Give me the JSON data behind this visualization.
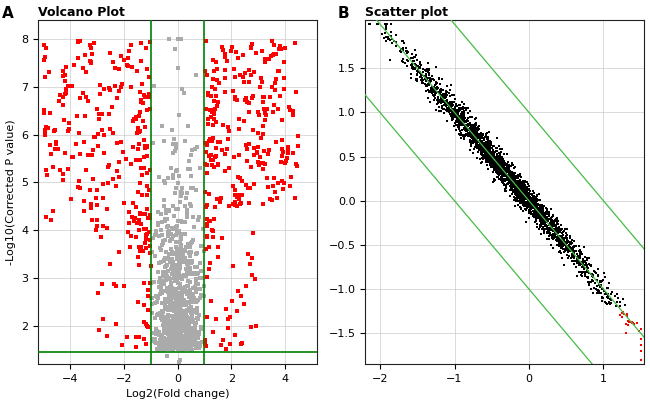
{
  "volcano": {
    "title": "Volcano Plot",
    "label": "A",
    "xlabel": "Log2(Fold change)",
    "ylabel": "-Log10(Corrected P value)",
    "xlim": [
      -5.2,
      5.2
    ],
    "ylim": [
      1.2,
      8.4
    ],
    "hline_y": 1.45,
    "vline_x1": -1.0,
    "vline_x2": 1.0,
    "yticks": [
      2,
      3,
      4,
      5,
      6,
      7,
      8
    ],
    "xticks": [
      -4,
      -2,
      0,
      2,
      4
    ],
    "sig_color": "#FF0000",
    "nonsig_color": "#AAAAAA",
    "line_color": "#008000"
  },
  "scatter": {
    "title": "Scatter plot",
    "label": "B",
    "xlim": [
      -2.2,
      1.55
    ],
    "ylim": [
      -1.85,
      2.05
    ],
    "yticks": [
      -1.5,
      -1.0,
      -0.5,
      0.0,
      0.5,
      1.0,
      1.5
    ],
    "xticks": [
      -2,
      -1,
      0,
      1
    ],
    "up_color": "#006400",
    "down_color": "#8B0000",
    "sig_down_color": "#FF0000",
    "nonsig_color": "#000000",
    "line_color": "#44BB44",
    "line_offsets": [
      -1.0,
      0.0,
      1.0
    ]
  },
  "bg_color": "#FFFFFF",
  "grid_color": "#CCCCCC"
}
